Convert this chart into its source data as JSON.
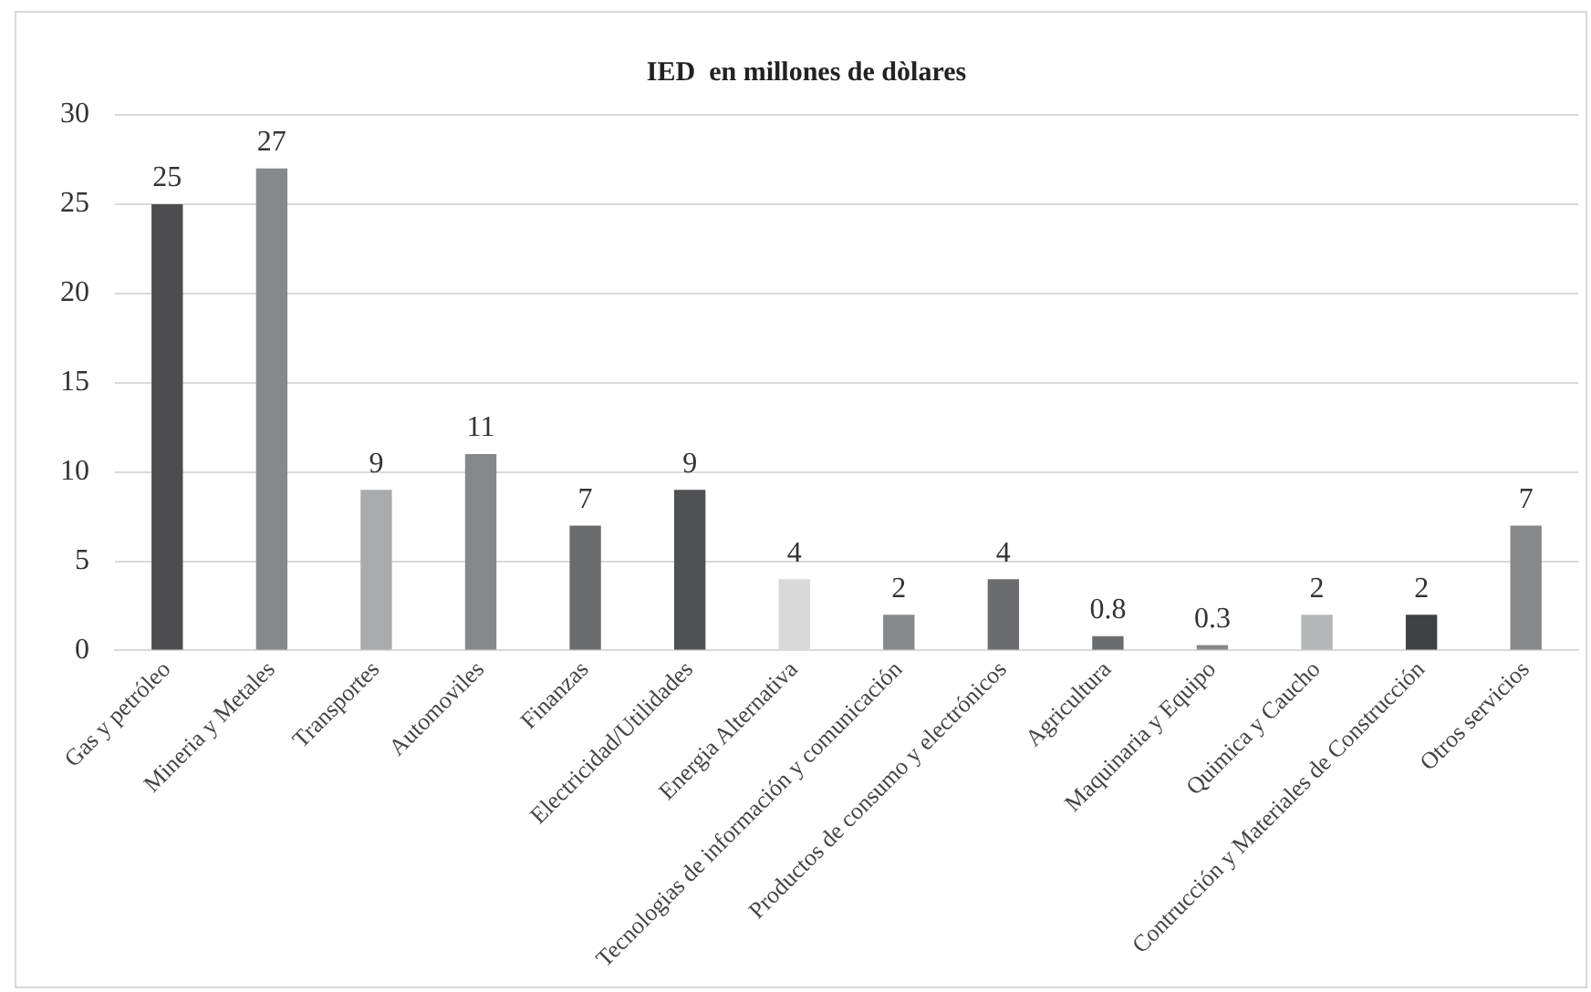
{
  "chart_data": {
    "type": "bar",
    "title": "IED  en millones de dòlares",
    "categories": [
      "Gas y petróleo",
      "Mineria y Metales",
      "Transportes",
      "Automoviles",
      "Finanzas",
      "Electricidad/Utilidades",
      "Energia Alternativa",
      "Tecnologias de información y comunicación",
      "Productos de consumo y electrónicos",
      "Agricultura",
      "Maquinaria y Equipo",
      "Quimica y Caucho",
      "Contrucción y Materiales de Construcción",
      "Otros servicios"
    ],
    "values": [
      25,
      27,
      9,
      11,
      7,
      9,
      4,
      2,
      4,
      0.8,
      0.3,
      2,
      2,
      7
    ],
    "colors": [
      "#4d4d4f",
      "#87888a",
      "#a9aaac",
      "#87888a",
      "#6b6c6e",
      "#505153",
      "#d9d9d9",
      "#87888a",
      "#6b6c6e",
      "#6b6c6e",
      "#87888a",
      "#b5b6b8",
      "#404143",
      "#87888a"
    ],
    "ylim": [
      0,
      30
    ],
    "yticks": [
      0,
      5,
      10,
      15,
      20,
      25,
      30
    ],
    "grid": "y",
    "data_labels": true,
    "legend": false
  }
}
